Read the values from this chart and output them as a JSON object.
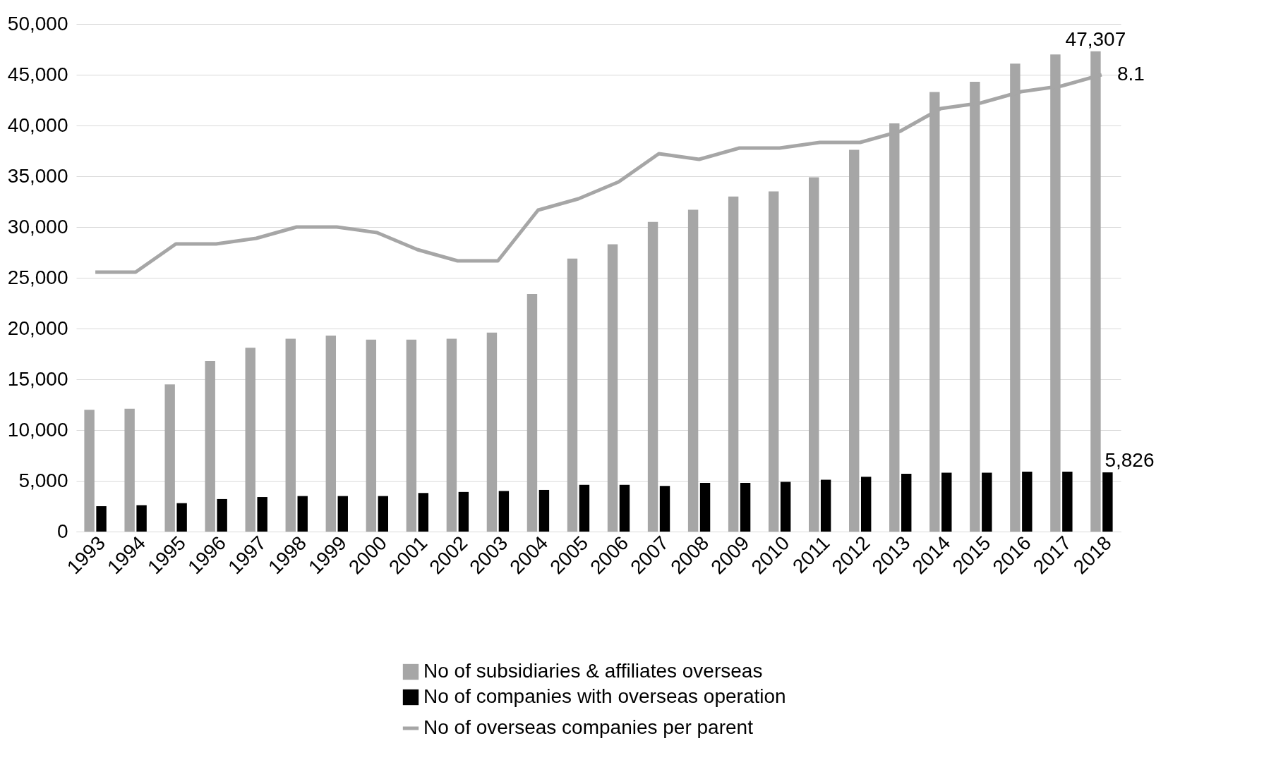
{
  "chart_data": {
    "type": "bar",
    "categories": [
      "1993",
      "1994",
      "1995",
      "1996",
      "1997",
      "1998",
      "1999",
      "2000",
      "2001",
      "2002",
      "2003",
      "2004",
      "2005",
      "2006",
      "2007",
      "2008",
      "2009",
      "2010",
      "2011",
      "2012",
      "2013",
      "2014",
      "2015",
      "2016",
      "2017",
      "2018"
    ],
    "series": [
      {
        "name": "No of subsidiaries & affiliates overseas",
        "color": "#a6a6a6",
        "values": [
          12000,
          12100,
          14500,
          16800,
          18100,
          19000,
          19300,
          18900,
          18900,
          19000,
          19600,
          23400,
          26900,
          28300,
          30500,
          31700,
          33000,
          33500,
          34900,
          37600,
          40200,
          43300,
          44300,
          46100,
          47000,
          47307
        ],
        "value_labels": [
          null,
          null,
          null,
          null,
          null,
          null,
          null,
          null,
          null,
          null,
          null,
          null,
          null,
          null,
          null,
          null,
          null,
          null,
          null,
          null,
          null,
          null,
          null,
          null,
          null,
          "47,307"
        ]
      },
      {
        "name": "No of companies with overseas operation",
        "color": "#000000",
        "values": [
          2500,
          2600,
          2800,
          3200,
          3400,
          3500,
          3500,
          3500,
          3800,
          3900,
          4000,
          4100,
          4600,
          4600,
          4500,
          4800,
          4800,
          4900,
          5100,
          5400,
          5700,
          5800,
          5800,
          5900,
          5900,
          5826
        ],
        "value_labels": [
          null,
          null,
          null,
          null,
          null,
          null,
          null,
          null,
          null,
          null,
          null,
          null,
          null,
          null,
          null,
          null,
          null,
          null,
          null,
          null,
          null,
          null,
          null,
          null,
          null,
          "5,826"
        ]
      },
      {
        "name": "No of overseas companies per parent",
        "type": "line",
        "axis": "y2",
        "color": "#a6a6a6",
        "values": [
          4.6,
          4.6,
          5.1,
          5.1,
          5.2,
          5.4,
          5.4,
          5.3,
          5.0,
          4.8,
          4.8,
          5.7,
          5.9,
          6.2,
          6.7,
          6.6,
          6.8,
          6.8,
          6.9,
          6.9,
          7.1,
          7.5,
          7.6,
          7.8,
          7.9,
          8.1
        ],
        "value_labels": [
          null,
          null,
          null,
          null,
          null,
          null,
          null,
          null,
          null,
          null,
          null,
          null,
          null,
          null,
          null,
          null,
          null,
          null,
          null,
          null,
          null,
          null,
          null,
          null,
          null,
          "8.1"
        ]
      }
    ],
    "ylim": [
      0,
      50000
    ],
    "yticks": [
      0,
      {
        "value": 5000,
        "label": "5,000"
      },
      {
        "value": 10000,
        "label": "10,000"
      },
      {
        "value": 15000,
        "label": "15,000"
      },
      {
        "value": 20000,
        "label": "20,000"
      },
      {
        "value": 25000,
        "label": "25,000"
      },
      {
        "value": 30000,
        "label": "30,000"
      },
      {
        "value": 35000,
        "label": "35,000"
      },
      {
        "value": 40000,
        "label": "40,000"
      },
      {
        "value": 45000,
        "label": "45,000"
      },
      {
        "value": 50000,
        "label": "50,000"
      }
    ],
    "y2lim": [
      0,
      9
    ],
    "grid": "y",
    "legend": "bottom",
    "marker": "none",
    "line_style": "solid"
  }
}
